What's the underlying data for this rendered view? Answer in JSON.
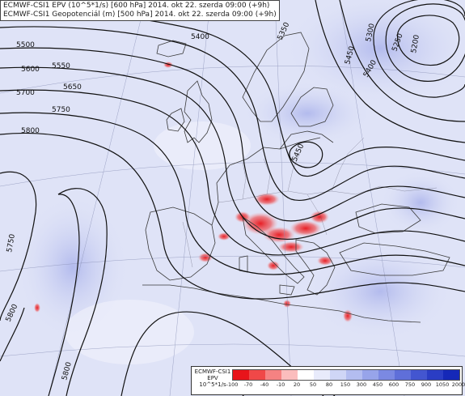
{
  "header": {
    "line1": "ECMWF-CSI1 EPV (10^5*1/s) [600 hPa] 2014. okt 22. szerda 09:00 (+9h)",
    "line2": "ECMWF-CSI1 Geopotenciál (m) [500 hPa] 2014. okt 22. szerda 09:00 (+9h)"
  },
  "contour_labels": [
    "5200",
    "5250",
    "5300",
    "5350",
    "5400",
    "5400",
    "5450",
    "5450",
    "5500",
    "5550",
    "5600",
    "5650",
    "5700",
    "5750",
    "5750",
    "5800",
    "5800",
    "5800"
  ],
  "legend": {
    "title_top": "ECMWF-CSI1",
    "title_mid": "EPV",
    "title_unit": "10^5*1/s",
    "ticks": [
      "-100",
      "-70",
      "-40",
      "-10",
      "20",
      "50",
      "80",
      "150",
      "300",
      "450",
      "600",
      "750",
      "900",
      "1050",
      "2000"
    ],
    "colors": [
      "#e8141a",
      "#f04848",
      "#f58282",
      "#fbbdbd",
      "#ffffff",
      "#e8ebfb",
      "#cfd6f6",
      "#b3bdf0",
      "#97a4ea",
      "#7b89e2",
      "#5f6fd9",
      "#4356d0",
      "#2a3dc4",
      "#1528b8"
    ]
  },
  "colors": {
    "background_field": "#dfe3f7",
    "contour": "#111111",
    "coastline": "#3a3a3a",
    "positive_anomaly": "#e8141a"
  }
}
